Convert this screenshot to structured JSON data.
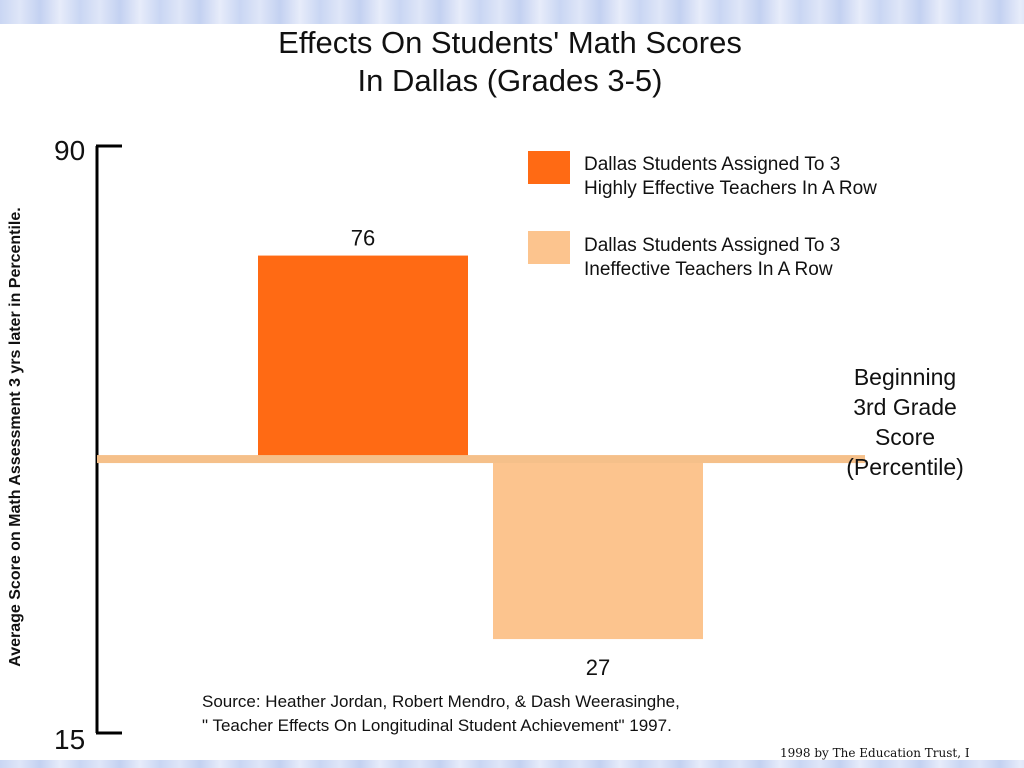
{
  "chart_data": {
    "type": "bar",
    "title_lines": [
      "Effects On Students' Math Scores",
      "In Dallas (Grades 3-5)"
    ],
    "ylabel": "Average Score on Math Assessment 3 yrs later in Percentile.",
    "ylim": [
      15,
      90
    ],
    "y_tick_labels": [
      "90",
      "15"
    ],
    "baseline": 50,
    "baseline_label_lines": [
      "Beginning",
      "3rd Grade",
      "Score",
      "(Percentile)"
    ],
    "categories": [
      "Dallas Students Assigned To 3 Highly Effective Teachers In A Row",
      "Dallas Students Assigned To 3 Ineffective Teachers In A Row"
    ],
    "values": [
      76,
      27
    ],
    "value_labels": [
      "76",
      "27"
    ],
    "colors": [
      "#ff6a14",
      "#fcc48e"
    ],
    "baseline_color": "#f5c08a",
    "legend": [
      {
        "lines": [
          "Dallas Students Assigned To 3",
          "Highly Effective Teachers In A Row"
        ],
        "color": "#ff6a14"
      },
      {
        "lines": [
          "Dallas Students Assigned To 3",
          "Ineffective Teachers In A Row"
        ],
        "color": "#fcc48e"
      }
    ],
    "legend_position": "top-right",
    "grid": false
  },
  "source_lines": [
    "Source:  Heather Jordan, Robert Mendro, & Dash Weerasinghe,",
    "\" Teacher Effects On Longitudinal Student Achievement\" 1997."
  ],
  "copyright": "1998 by The Education Trust, I"
}
